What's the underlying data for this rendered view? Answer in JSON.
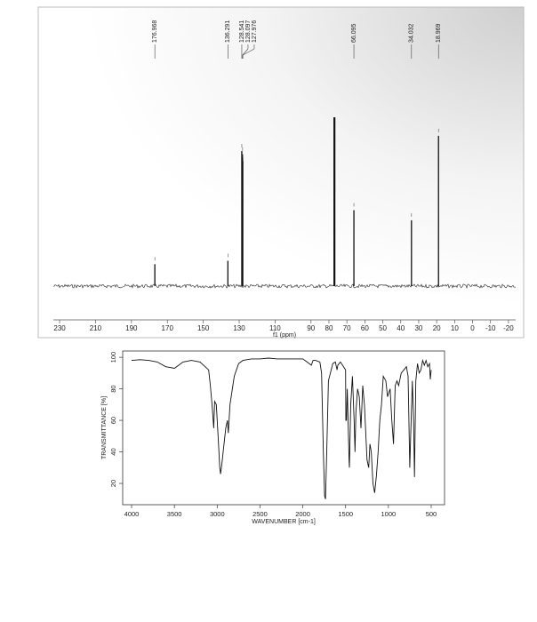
{
  "chart_data": [
    {
      "type": "stem",
      "x": [
        176.968,
        136.291,
        128.541,
        128.097,
        127.976,
        66.095,
        34.032,
        18.969
      ],
      "values": [
        13,
        15,
        80,
        78,
        74,
        45,
        39,
        89
      ],
      "solvent_peak": {
        "x": 77.0,
        "value": 100
      },
      "xlim": [
        233.5,
        -24
      ],
      "ylim": [
        0,
        100
      ],
      "xticks": [
        230,
        210,
        190,
        170,
        150,
        130,
        110,
        90,
        80,
        70,
        60,
        50,
        40,
        30,
        20,
        10,
        0,
        -10,
        -20
      ],
      "xlabel": "f1 (ppm)",
      "color": "#111111"
    },
    {
      "type": "line",
      "x": [
        4000,
        3900,
        3800,
        3700,
        3600,
        3500,
        3450,
        3400,
        3300,
        3200,
        3100,
        3080,
        3060,
        3040,
        3030,
        3010,
        2990,
        2970,
        2960,
        2940,
        2930,
        2900,
        2880,
        2870,
        2850,
        2800,
        2750,
        2700,
        2600,
        2500,
        2400,
        2300,
        2200,
        2100,
        2000,
        1950,
        1900,
        1880,
        1850,
        1800,
        1780,
        1760,
        1745,
        1735,
        1720,
        1700,
        1650,
        1620,
        1600,
        1590,
        1560,
        1500,
        1497,
        1490,
        1480,
        1460,
        1455,
        1440,
        1420,
        1400,
        1390,
        1380,
        1360,
        1340,
        1320,
        1300,
        1280,
        1250,
        1230,
        1215,
        1200,
        1180,
        1160,
        1140,
        1120,
        1100,
        1080,
        1060,
        1030,
        1010,
        980,
        960,
        940,
        920,
        900,
        880,
        850,
        820,
        790,
        770,
        750,
        740,
        720,
        705,
        695,
        680,
        660,
        640,
        620,
        600,
        580,
        560,
        540,
        520,
        510,
        500
      ],
      "values": [
        98,
        98.5,
        98,
        97,
        94,
        93,
        95,
        97,
        98,
        97,
        92,
        82,
        70,
        55,
        72,
        70,
        50,
        30,
        26,
        35,
        40,
        55,
        60,
        52,
        70,
        88,
        96,
        98,
        99,
        99,
        99.5,
        99,
        99,
        99,
        99,
        97,
        95,
        98,
        98,
        97,
        90,
        40,
        12,
        10,
        40,
        85,
        96,
        97,
        92,
        95,
        97,
        92,
        60,
        60,
        80,
        35,
        30,
        70,
        88,
        60,
        40,
        65,
        80,
        75,
        55,
        82,
        70,
        35,
        30,
        45,
        40,
        20,
        14,
        25,
        40,
        60,
        70,
        88,
        85,
        75,
        80,
        60,
        45,
        82,
        85,
        82,
        90,
        92,
        94,
        88,
        30,
        50,
        85,
        60,
        24,
        85,
        96,
        90,
        92,
        98,
        95,
        98,
        94,
        96,
        86,
        92
      ],
      "xlim": [
        4104,
        344
      ],
      "ylim": [
        6.5,
        104
      ],
      "xticks": [
        4000,
        3500,
        3000,
        2500,
        2000,
        1500,
        1000,
        500
      ],
      "yticks": [
        20,
        40,
        60,
        80,
        100
      ],
      "xlabel": "WAVENUMBER [cm-1]",
      "ylabel": "TRANSMITTANCE [%]",
      "color": "#111111"
    }
  ]
}
